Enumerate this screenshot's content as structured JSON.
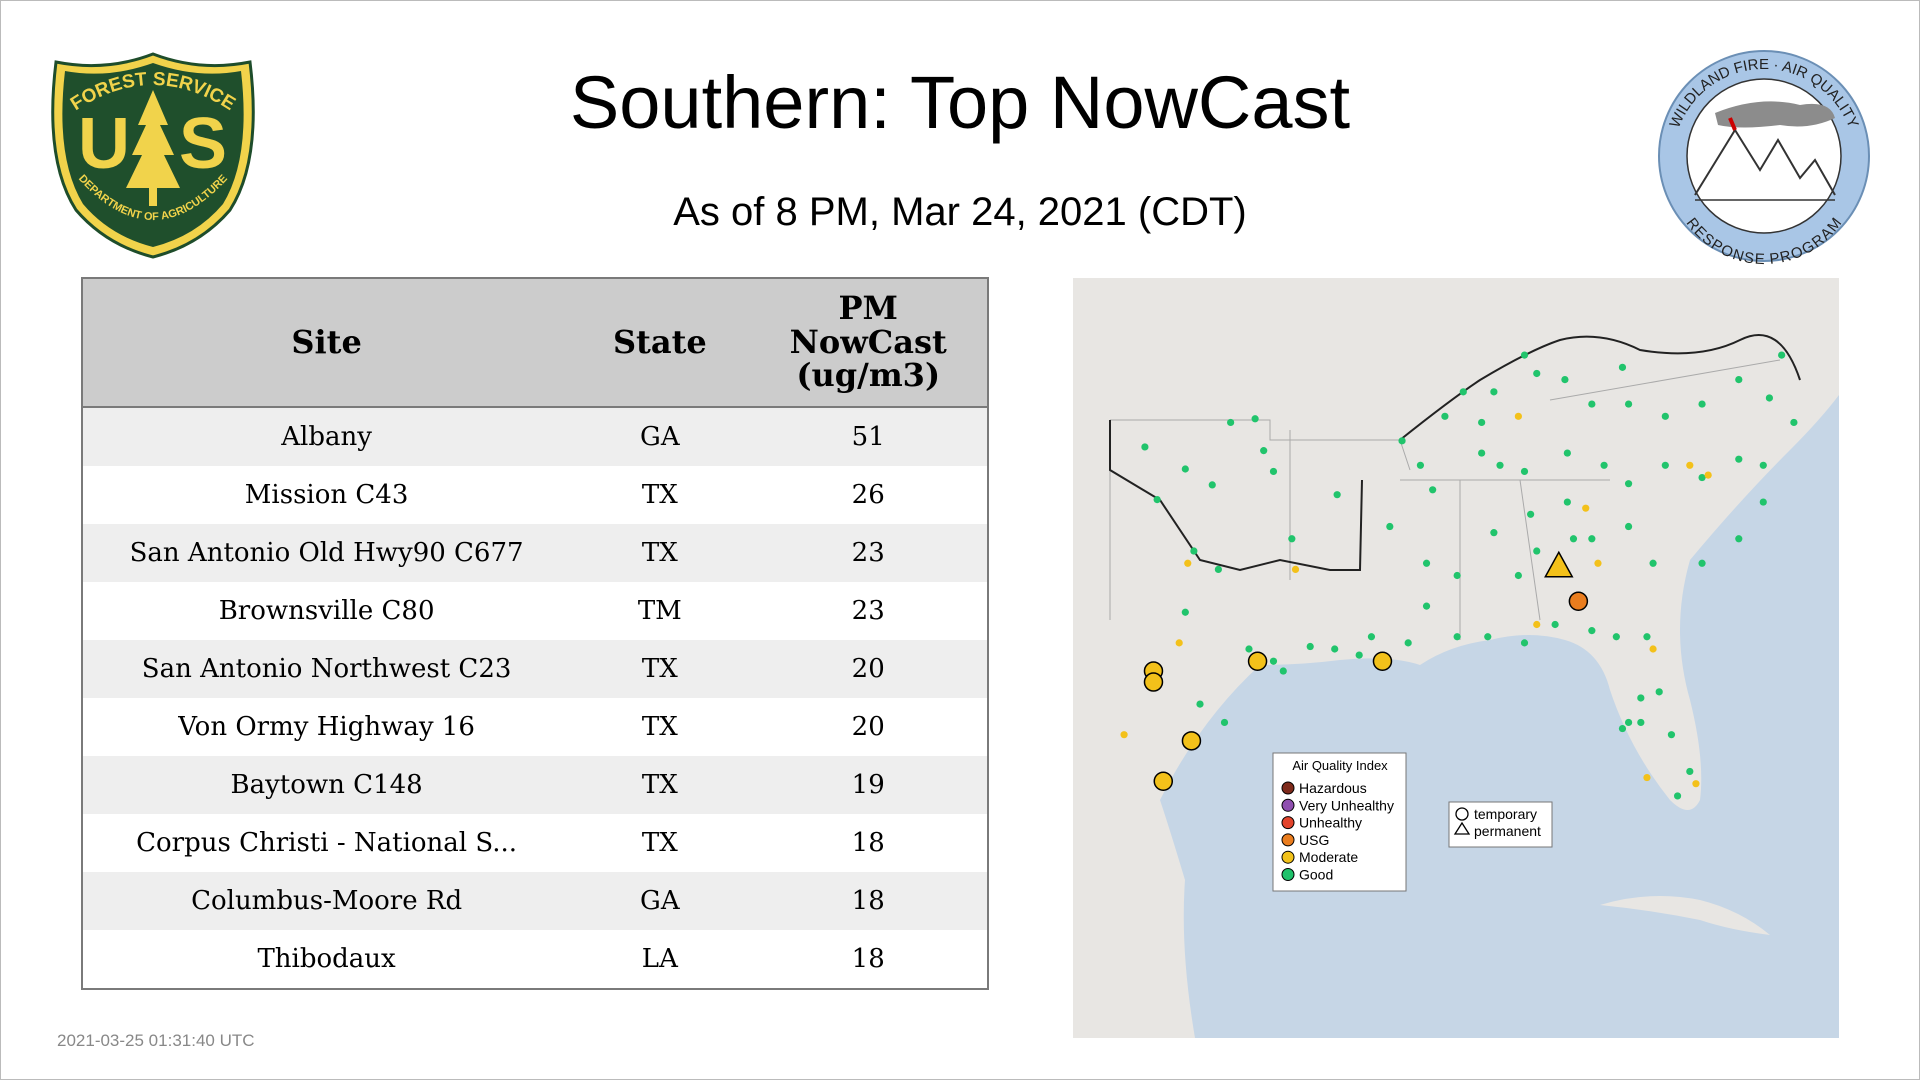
{
  "header": {
    "title": "Southern: Top NowCast",
    "subtitle": "As of  8 PM, Mar 24, 2021 (CDT)"
  },
  "logos": {
    "left": {
      "top": "FOREST SERVICE",
      "letter_left": "U",
      "letter_right": "S",
      "bottom": "DEPARTMENT OF AGRICULTURE"
    },
    "right": {
      "top": "WILDLAND FIRE · AIR QUALITY",
      "bottom": "RESPONSE PROGRAM"
    }
  },
  "table": {
    "headers": [
      "Site",
      "State",
      "PM NowCast (ug/m3)"
    ],
    "rows": [
      [
        "Albany",
        "GA",
        "51"
      ],
      [
        "Mission C43",
        "TX",
        "26"
      ],
      [
        "San Antonio Old Hwy90 C677",
        "TX",
        "23"
      ],
      [
        "Brownsville C80",
        "TM",
        "23"
      ],
      [
        "San Antonio Northwest C23",
        "TX",
        "20"
      ],
      [
        "Von Ormy Highway 16",
        "TX",
        "20"
      ],
      [
        "Baytown C148",
        "TX",
        "19"
      ],
      [
        "Corpus Christi - National S...",
        "TX",
        "18"
      ],
      [
        "Columbus-Moore Rd",
        "GA",
        "18"
      ],
      [
        "Thibodaux",
        "LA",
        "18"
      ]
    ]
  },
  "map": {
    "legend": {
      "title": "Air Quality Index",
      "items": [
        "Hazardous",
        "Very Unhealthy",
        "Unhealthy",
        "USG",
        "Moderate",
        "Good"
      ]
    },
    "shape_legend": [
      "temporary",
      "permanent"
    ]
  },
  "footer": {
    "timestamp": "2021-03-25 01:31:40 UTC"
  }
}
